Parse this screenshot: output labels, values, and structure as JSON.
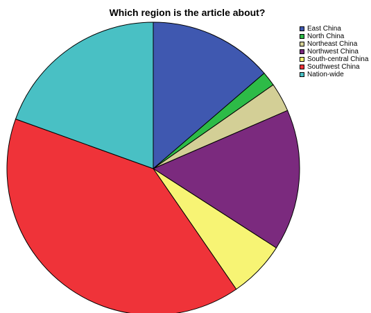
{
  "chart_data": {
    "type": "pie",
    "title": "Which region is the article about?",
    "legend_position": "top-right",
    "slice_order": "clockwise-from-top",
    "categories": [
      "East China",
      "North China",
      "Northeast China",
      "Northwest China",
      "South-central China",
      "Southwest China",
      "Nation-wide"
    ],
    "values": [
      13.7,
      1.6,
      3.2,
      15.6,
      6.3,
      40.1,
      19.5
    ],
    "unit": "percent",
    "colors": [
      "#3f58b0",
      "#2dbb47",
      "#d3cf96",
      "#7b2a7e",
      "#f7f474",
      "#ef3339",
      "#49c0c4"
    ]
  }
}
